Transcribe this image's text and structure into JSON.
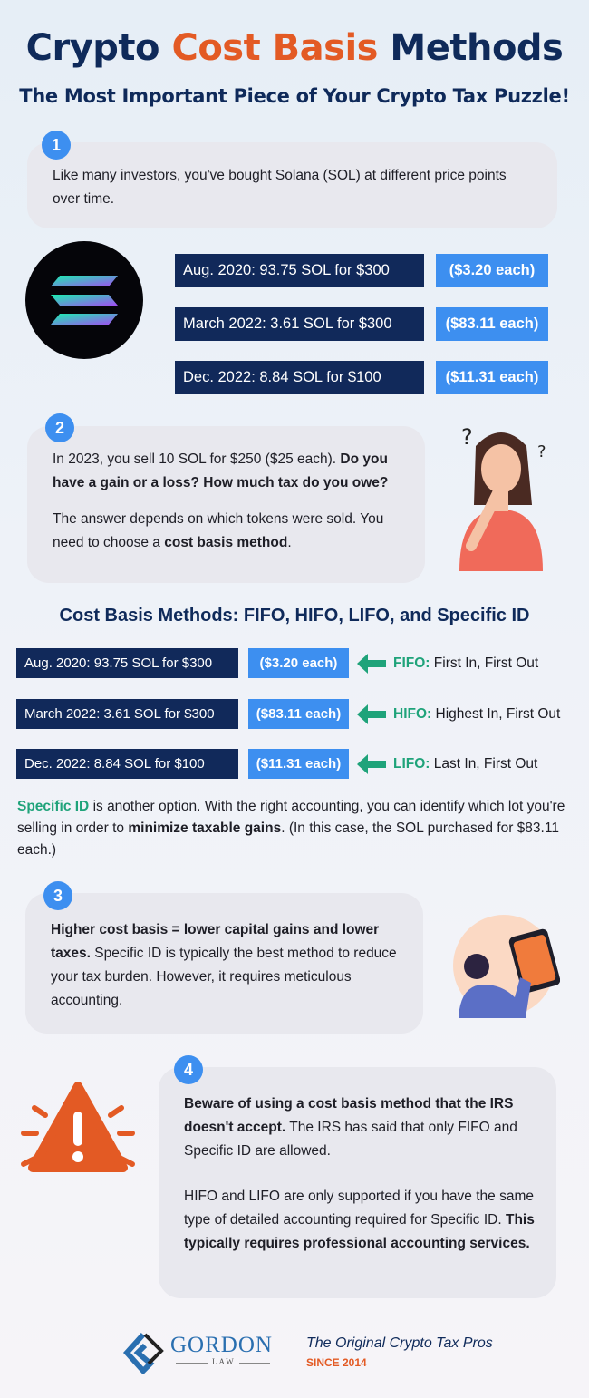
{
  "header": {
    "title_part1": "Crypto",
    "title_highlight": "Cost Basis",
    "title_part2": "Methods",
    "subtitle": "The Most Important Piece of Your Crypto Tax Puzzle!"
  },
  "colors": {
    "navy": "#11295a",
    "orange": "#e35a24",
    "blue": "#3d8ff0",
    "teal": "#1fa37a",
    "card": "#e8e8ee"
  },
  "step1": {
    "number": "1",
    "text": "Like many investors, you've bought Solana (SOL) at different price points over time."
  },
  "purchases": [
    {
      "lot": "Aug. 2020: 93.75 SOL for $300",
      "price": "($3.20 each)"
    },
    {
      "lot": "March 2022: 3.61 SOL for $300",
      "price": "($83.11 each)"
    },
    {
      "lot": "Dec. 2022: 8.84 SOL for $100",
      "price": "($11.31 each)"
    }
  ],
  "step2": {
    "number": "2",
    "text1": "In 2023, you sell 10 SOL for $250 ($25 each).",
    "bold1": "Do you have a gain or a loss? How much tax do you owe?",
    "text2": "The answer depends on which tokens were sold. You need to choose a",
    "bold2": "cost basis method",
    "end": "."
  },
  "methods": {
    "heading": "Cost Basis Methods: FIFO, HIFO, LIFO, and Specific ID",
    "rows": [
      {
        "lot": "Aug. 2020: 93.75 SOL for $300",
        "price": "($3.20 each)",
        "method": "FIFO:",
        "desc": "First In, First Out"
      },
      {
        "lot": "March 2022: 3.61 SOL for $300",
        "price": "($83.11 each)",
        "method": "HIFO:",
        "desc": "Highest In, First Out"
      },
      {
        "lot": "Dec. 2022: 8.84 SOL for $100",
        "price": "($11.31 each)",
        "method": "LIFO:",
        "desc": "Last In, First Out"
      }
    ],
    "specific_label": "Specific ID",
    "specific_text1": "is another option. With the right accounting, you can identify which lot you're selling in order to",
    "specific_bold": "minimize taxable gains",
    "specific_text2": ". (In this case, the SOL purchased for $83.11 each.)"
  },
  "step3": {
    "number": "3",
    "bold": "Higher cost basis = lower capital gains and lower taxes.",
    "text": "Specific ID is typically the best method to reduce your tax burden. However, it requires meticulous accounting."
  },
  "step4": {
    "number": "4",
    "bold1": "Beware of using a cost basis method that the IRS doesn't accept.",
    "text1": "The IRS has said that only FIFO and Specific ID are allowed.",
    "text2": "HIFO and LIFO are only supported if you have the same type of detailed accounting required for Specific ID.",
    "bold2": "This typically requires professional accounting services."
  },
  "footer": {
    "logo_name": "GORDON",
    "logo_sub": "LAW",
    "tagline": "The Original Crypto Tax Pros",
    "since": "SINCE 2014"
  }
}
